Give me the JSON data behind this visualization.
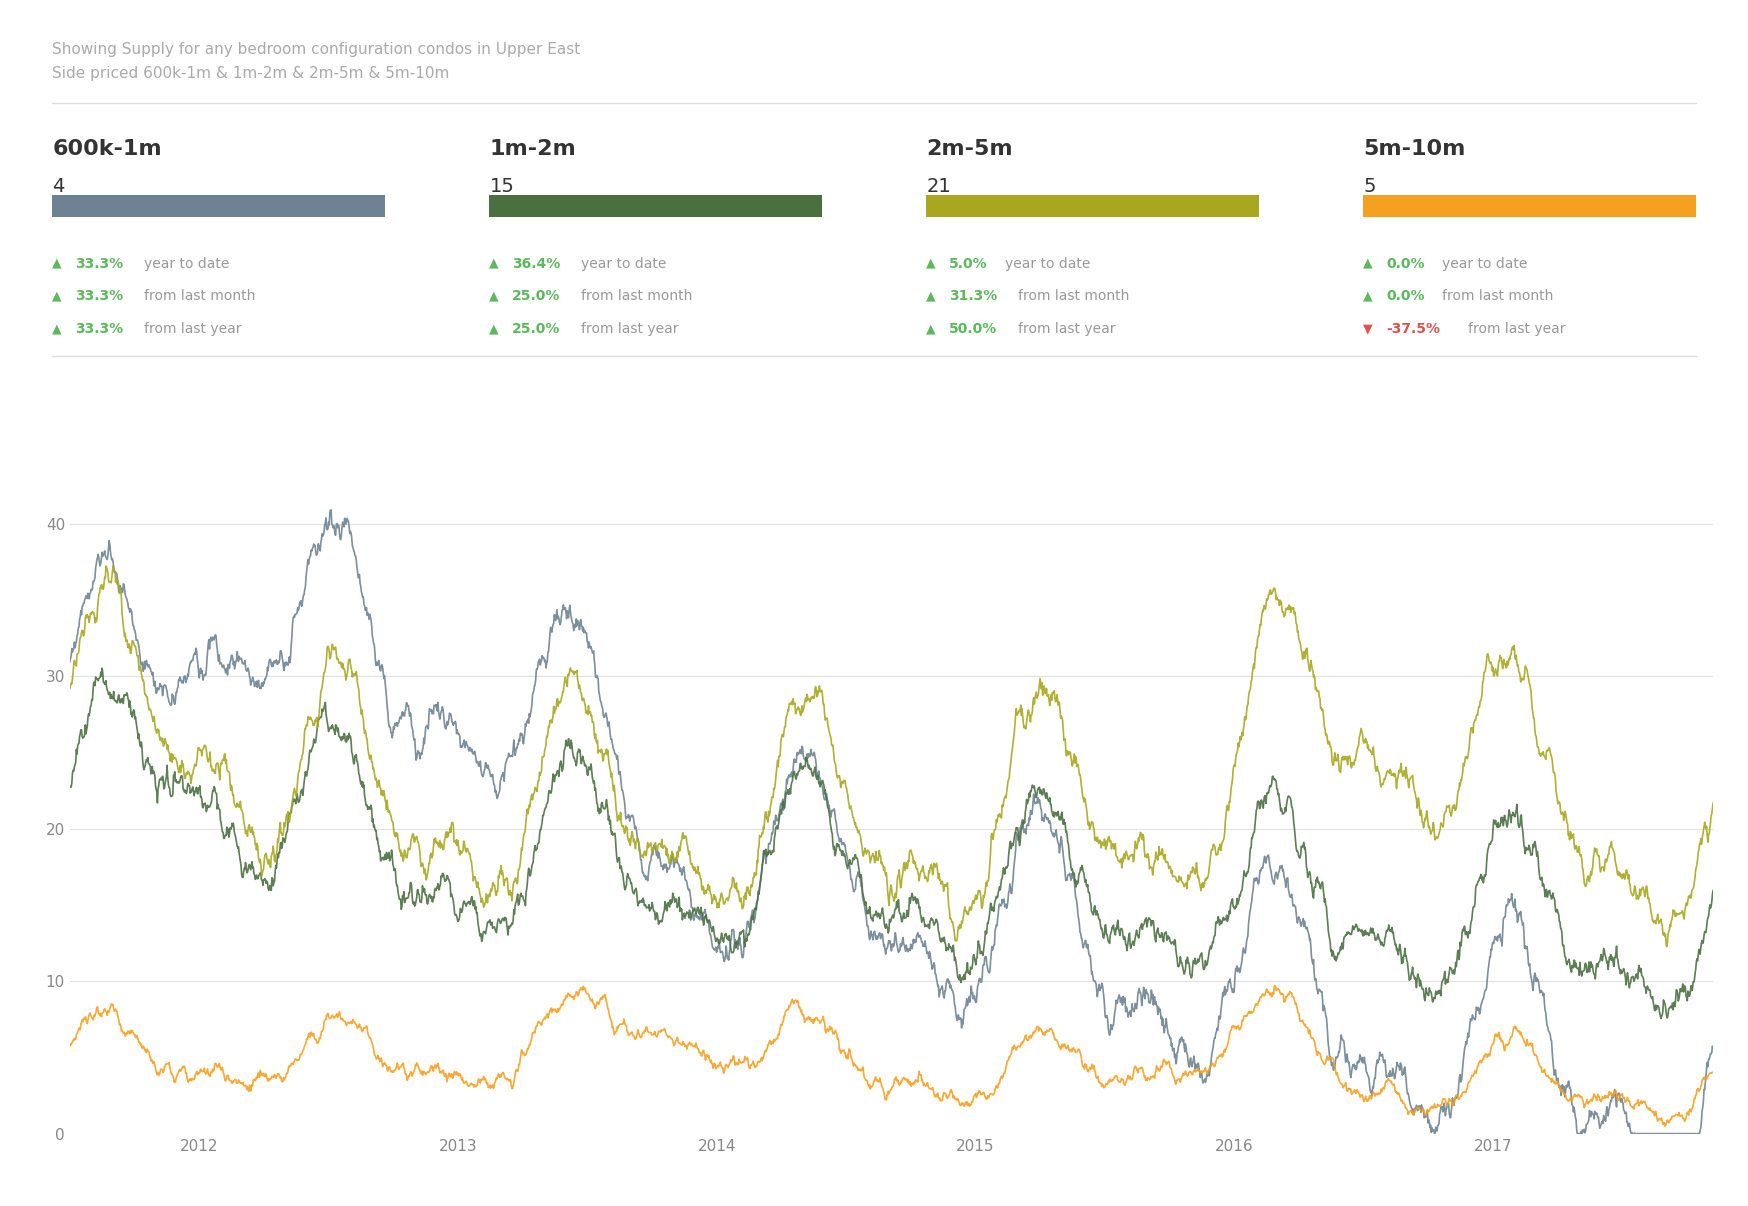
{
  "title_line1": "Showing Supply for any bedroom configuration condos in Upper East",
  "title_line2": "Side priced 600k-1m & 1m-2m & 2m-5m & 5m-10m",
  "categories": [
    "600k-1m",
    "1m-2m",
    "2m-5m",
    "5m-10m"
  ],
  "values": [
    4,
    15,
    21,
    5
  ],
  "colors": [
    "#6e8391",
    "#4a7040",
    "#a8a820",
    "#f5a020"
  ],
  "stats": [
    {
      "ytd": {
        "pct": "33.3%",
        "up": true
      },
      "month": {
        "pct": "33.3%",
        "up": true
      },
      "year": {
        "pct": "33.3%",
        "up": true
      }
    },
    {
      "ytd": {
        "pct": "36.4%",
        "up": true
      },
      "month": {
        "pct": "25.0%",
        "up": true
      },
      "year": {
        "pct": "25.0%",
        "up": true
      }
    },
    {
      "ytd": {
        "pct": "5.0%",
        "up": true
      },
      "month": {
        "pct": "31.3%",
        "up": true
      },
      "year": {
        "pct": "50.0%",
        "up": true
      }
    },
    {
      "ytd": {
        "pct": "0.0%",
        "up": true
      },
      "month": {
        "pct": "0.0%",
        "up": true
      },
      "year": {
        "pct": "-37.5%",
        "up": false
      }
    }
  ],
  "bg_color": "#ffffff",
  "text_color_light": "#aaaaaa",
  "text_color_dark": "#333333",
  "green_arrow": "#5cb85c",
  "red_arrow": "#d9534f",
  "green_pct": "#5cb85c",
  "red_pct": "#d9534f",
  "grey_text": "#999999"
}
